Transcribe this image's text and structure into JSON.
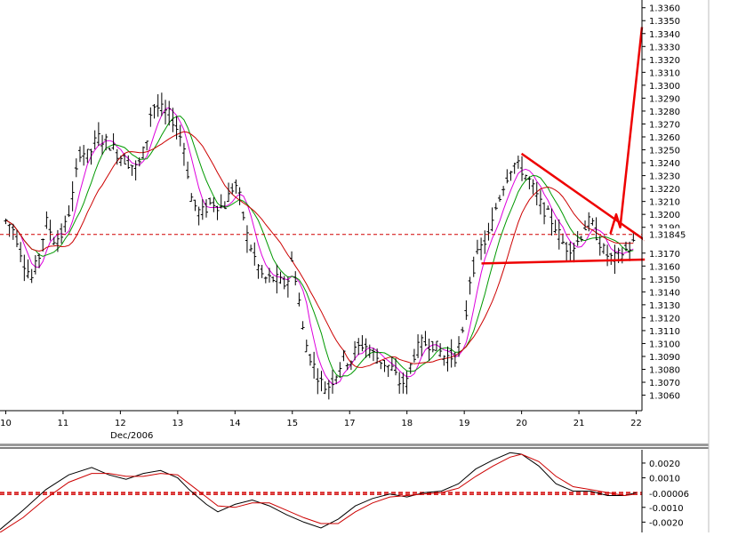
{
  "chart_data": [
    {
      "type": "candlestick",
      "name": "price-panel",
      "x_ticks": [
        {
          "label": "10",
          "t": 0.0
        },
        {
          "label": "11",
          "t": 1.0
        },
        {
          "label": "12",
          "t": 2.0
        },
        {
          "label": "13",
          "t": 3.0
        },
        {
          "label": "14",
          "t": 4.0
        },
        {
          "label": "15",
          "t": 5.0
        },
        {
          "label": "17",
          "t": 6.0
        },
        {
          "label": "18",
          "t": 7.0
        },
        {
          "label": "19",
          "t": 8.0
        },
        {
          "label": "20",
          "t": 9.0
        },
        {
          "label": "21",
          "t": 10.0
        },
        {
          "label": "22",
          "t": 11.0
        }
      ],
      "x_sub_label": "Dec/2006",
      "xlim": [
        -0.1,
        11.1
      ],
      "ylim": [
        1.3048,
        1.3366
      ],
      "y_ticks": [
        "1.3360",
        "1.3350",
        "1.3340",
        "1.3330",
        "1.3320",
        "1.3310",
        "1.3300",
        "1.3290",
        "1.3280",
        "1.3270",
        "1.3260",
        "1.3250",
        "1.3240",
        "1.3230",
        "1.3220",
        "1.3210",
        "1.3200",
        "1.3190",
        "1.3170",
        "1.3160",
        "1.3150",
        "1.3140",
        "1.3130",
        "1.3120",
        "1.3110",
        "1.3100",
        "1.3090",
        "1.3080",
        "1.3070",
        "1.3060"
      ],
      "current_price": {
        "label": "1.31845",
        "value": 1.31845,
        "color": "#d00000"
      },
      "price_anchors": [
        [
          0.0,
          1.3195
        ],
        [
          0.15,
          1.3188
        ],
        [
          0.3,
          1.3165
        ],
        [
          0.45,
          1.315
        ],
        [
          0.6,
          1.317
        ],
        [
          0.7,
          1.3195
        ],
        [
          0.85,
          1.318
        ],
        [
          1.0,
          1.3185
        ],
        [
          1.15,
          1.321
        ],
        [
          1.3,
          1.325
        ],
        [
          1.45,
          1.3245
        ],
        [
          1.6,
          1.326
        ],
        [
          1.8,
          1.3255
        ],
        [
          2.0,
          1.3245
        ],
        [
          2.15,
          1.324
        ],
        [
          2.3,
          1.3235
        ],
        [
          2.45,
          1.3255
        ],
        [
          2.55,
          1.3285
        ],
        [
          2.75,
          1.328
        ],
        [
          2.9,
          1.3275
        ],
        [
          3.0,
          1.3265
        ],
        [
          3.1,
          1.3255
        ],
        [
          3.25,
          1.321
        ],
        [
          3.4,
          1.32
        ],
        [
          3.6,
          1.321
        ],
        [
          3.8,
          1.3205
        ],
        [
          4.0,
          1.3225
        ],
        [
          4.1,
          1.321
        ],
        [
          4.2,
          1.3185
        ],
        [
          4.35,
          1.3165
        ],
        [
          4.5,
          1.315
        ],
        [
          4.7,
          1.315
        ],
        [
          4.9,
          1.3145
        ],
        [
          5.0,
          1.3165
        ],
        [
          5.1,
          1.314
        ],
        [
          5.2,
          1.3105
        ],
        [
          5.35,
          1.3085
        ],
        [
          5.5,
          1.307
        ],
        [
          5.6,
          1.3065
        ],
        [
          5.75,
          1.3075
        ],
        [
          5.9,
          1.309
        ],
        [
          6.0,
          1.3085
        ],
        [
          6.1,
          1.3095
        ],
        [
          6.25,
          1.31
        ],
        [
          6.45,
          1.309
        ],
        [
          6.6,
          1.3085
        ],
        [
          6.75,
          1.308
        ],
        [
          6.85,
          1.307
        ],
        [
          7.0,
          1.307
        ],
        [
          7.1,
          1.309
        ],
        [
          7.25,
          1.31
        ],
        [
          7.45,
          1.31
        ],
        [
          7.65,
          1.309
        ],
        [
          7.85,
          1.309
        ],
        [
          8.0,
          1.311
        ],
        [
          8.1,
          1.315
        ],
        [
          8.2,
          1.3165
        ],
        [
          8.3,
          1.3175
        ],
        [
          8.45,
          1.3185
        ],
        [
          8.55,
          1.3205
        ],
        [
          8.7,
          1.3225
        ],
        [
          8.85,
          1.324
        ],
        [
          9.0,
          1.3235
        ],
        [
          9.15,
          1.3225
        ],
        [
          9.3,
          1.321
        ],
        [
          9.45,
          1.32
        ],
        [
          9.6,
          1.319
        ],
        [
          9.75,
          1.3175
        ],
        [
          9.9,
          1.3175
        ],
        [
          10.0,
          1.318
        ],
        [
          10.1,
          1.319
        ],
        [
          10.2,
          1.3195
        ],
        [
          10.3,
          1.3185
        ],
        [
          10.45,
          1.317
        ],
        [
          10.6,
          1.3165
        ],
        [
          10.75,
          1.317
        ],
        [
          10.9,
          1.3175
        ],
        [
          11.0,
          1.318
        ]
      ],
      "annotations": [
        {
          "type": "trendline",
          "color": "#ee0000",
          "points": [
            [
              9.0,
              1.3247
            ],
            [
              11.15,
              1.318
            ]
          ]
        },
        {
          "type": "trendline",
          "color": "#ee0000",
          "points": [
            [
              8.3,
              1.3162
            ],
            [
              11.15,
              1.3165
            ]
          ]
        },
        {
          "type": "zigzag",
          "color": "#ee0000",
          "points": [
            [
              10.55,
              1.3185
            ],
            [
              10.65,
              1.32
            ],
            [
              10.72,
              1.319
            ],
            [
              11.1,
              1.3345
            ]
          ]
        }
      ]
    },
    {
      "type": "line",
      "name": "oscillator-panel",
      "xlim": [
        -0.1,
        11.1
      ],
      "ylim": [
        -0.0027,
        0.0029
      ],
      "y_ticks": [
        "0.0020",
        "0.0010",
        "-0.0010",
        "-0.0020"
      ],
      "reference_label": "-0.00006",
      "reference_lines": [
        0.0,
        -0.00012
      ],
      "series": [
        {
          "color": "#000000",
          "points": [
            [
              -0.1,
              -0.0025
            ],
            [
              0.3,
              -0.0012
            ],
            [
              0.7,
              0.0002
            ],
            [
              1.1,
              0.0012
            ],
            [
              1.5,
              0.0017
            ],
            [
              1.8,
              0.0012
            ],
            [
              2.1,
              0.0009
            ],
            [
              2.4,
              0.0013
            ],
            [
              2.7,
              0.0015
            ],
            [
              3.0,
              0.001
            ],
            [
              3.2,
              0.0002
            ],
            [
              3.5,
              -0.0008
            ],
            [
              3.7,
              -0.0013
            ],
            [
              4.0,
              -0.0008
            ],
            [
              4.3,
              -0.0005
            ],
            [
              4.6,
              -0.0009
            ],
            [
              4.9,
              -0.0015
            ],
            [
              5.2,
              -0.002
            ],
            [
              5.5,
              -0.0024
            ],
            [
              5.8,
              -0.0018
            ],
            [
              6.1,
              -0.0009
            ],
            [
              6.4,
              -0.0004
            ],
            [
              6.7,
              -0.0001
            ],
            [
              7.0,
              -0.0003
            ],
            [
              7.3,
              0.0
            ],
            [
              7.6,
              0.0001
            ],
            [
              7.9,
              0.0006
            ],
            [
              8.2,
              0.0016
            ],
            [
              8.5,
              0.0022
            ],
            [
              8.8,
              0.0027
            ],
            [
              9.0,
              0.0026
            ],
            [
              9.3,
              0.0018
            ],
            [
              9.6,
              0.0006
            ],
            [
              9.9,
              0.0001
            ],
            [
              10.2,
              0.0001
            ],
            [
              10.5,
              -0.0002
            ],
            [
              10.8,
              -0.0002
            ],
            [
              11.0,
              0.0
            ]
          ]
        },
        {
          "color": "#cc0000",
          "points": [
            [
              -0.1,
              -0.0027
            ],
            [
              0.3,
              -0.0017
            ],
            [
              0.7,
              -0.0004
            ],
            [
              1.1,
              0.0007
            ],
            [
              1.5,
              0.0013
            ],
            [
              1.8,
              0.0013
            ],
            [
              2.1,
              0.0011
            ],
            [
              2.4,
              0.0011
            ],
            [
              2.7,
              0.0013
            ],
            [
              3.0,
              0.0012
            ],
            [
              3.2,
              0.0006
            ],
            [
              3.5,
              -0.0003
            ],
            [
              3.7,
              -0.0009
            ],
            [
              4.0,
              -0.001
            ],
            [
              4.3,
              -0.0007
            ],
            [
              4.6,
              -0.0007
            ],
            [
              4.9,
              -0.0012
            ],
            [
              5.2,
              -0.0017
            ],
            [
              5.5,
              -0.0021
            ],
            [
              5.8,
              -0.0021
            ],
            [
              6.1,
              -0.0013
            ],
            [
              6.4,
              -0.0007
            ],
            [
              6.7,
              -0.0003
            ],
            [
              7.0,
              -0.0002
            ],
            [
              7.3,
              -0.0001
            ],
            [
              7.6,
              0.0
            ],
            [
              7.9,
              0.0003
            ],
            [
              8.2,
              0.0011
            ],
            [
              8.5,
              0.0018
            ],
            [
              8.8,
              0.0024
            ],
            [
              9.0,
              0.0026
            ],
            [
              9.3,
              0.0021
            ],
            [
              9.6,
              0.0011
            ],
            [
              9.9,
              0.0004
            ],
            [
              10.2,
              0.0002
            ],
            [
              10.5,
              0.0
            ],
            [
              10.8,
              -0.0002
            ],
            [
              11.0,
              -0.0001
            ]
          ]
        }
      ]
    }
  ],
  "colors": {
    "candle": "#000000",
    "ma_fast": "#dd00dd",
    "ma_mid": "#009900",
    "ma_slow": "#cc0000",
    "annotation": "#ee0000",
    "axis": "#000000",
    "separator": "#9a9a9a"
  }
}
